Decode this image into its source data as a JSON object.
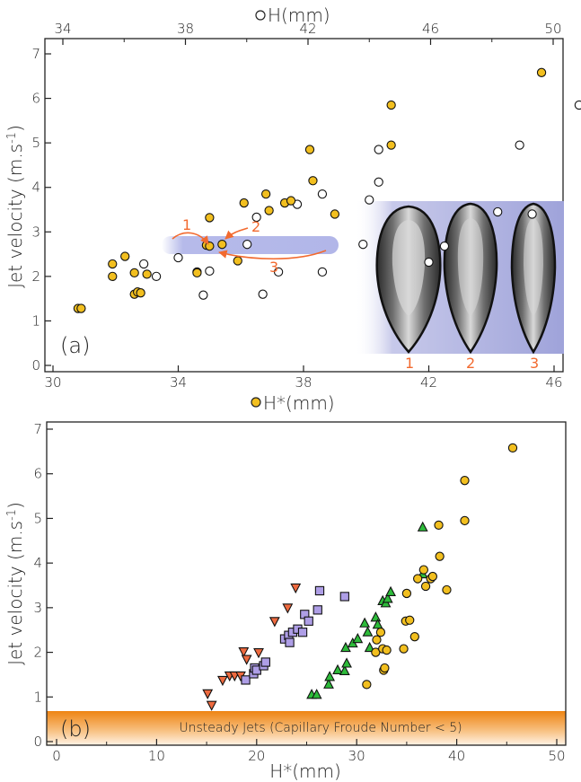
{
  "chart_data": [
    {
      "panel": "(a)",
      "type": "scatter",
      "xlabel": "H*(mm)",
      "ylabel": "Jet velocity (m.s-1)",
      "top_xlabel": "H(mm)",
      "xlim": [
        30,
        46
      ],
      "xlim_top": [
        33,
        50
      ],
      "ylim": [
        0,
        7
      ],
      "xticks": [
        30,
        34,
        38,
        42,
        46
      ],
      "xticks_top": [
        34,
        38,
        42,
        46,
        50
      ],
      "yticks": [
        0,
        1,
        2,
        3,
        4,
        5,
        6,
        7
      ],
      "colors": {
        "filled": "#f2bf1f",
        "open": "#ffffff",
        "arrow": "#f26a2f",
        "band": "#a9aee6"
      },
      "series": [
        {
          "axis": "bottom H*",
          "marker": "filled circle",
          "points": [
            [
              30.8,
              1.28
            ],
            [
              30.9,
              1.28
            ],
            [
              31.9,
              2.0
            ],
            [
              31.9,
              2.28
            ],
            [
              32.3,
              2.45
            ],
            [
              32.6,
              2.08
            ],
            [
              32.6,
              1.6
            ],
            [
              32.7,
              1.65
            ],
            [
              32.8,
              1.63
            ],
            [
              33.0,
              2.05
            ],
            [
              34.6,
              2.08
            ],
            [
              34.9,
              2.7
            ],
            [
              35.0,
              2.68
            ],
            [
              35.0,
              3.32
            ],
            [
              35.4,
              2.72
            ],
            [
              35.9,
              2.35
            ],
            [
              36.1,
              3.65
            ],
            [
              36.8,
              3.85
            ],
            [
              36.9,
              3.48
            ],
            [
              37.4,
              3.65
            ],
            [
              37.6,
              3.7
            ],
            [
              38.2,
              4.85
            ],
            [
              38.3,
              4.15
            ],
            [
              39.0,
              3.4
            ],
            [
              40.8,
              5.85
            ],
            [
              40.8,
              4.95
            ],
            [
              45.6,
              6.58
            ]
          ]
        },
        {
          "axis": "top H",
          "marker": "open circle",
          "points": [
            [
              32.9,
              2.28
            ],
            [
              33.3,
              2.0
            ],
            [
              34.0,
              2.42
            ],
            [
              34.6,
              2.1
            ],
            [
              34.8,
              1.58
            ],
            [
              35.0,
              2.12
            ],
            [
              36.2,
              2.72
            ],
            [
              36.5,
              3.33
            ],
            [
              36.7,
              1.6
            ],
            [
              37.2,
              2.1
            ],
            [
              37.8,
              3.62
            ],
            [
              38.6,
              2.1
            ],
            [
              38.6,
              3.85
            ],
            [
              39.9,
              2.72
            ],
            [
              40.1,
              3.72
            ],
            [
              40.4,
              4.12
            ],
            [
              40.4,
              4.85
            ],
            [
              42.0,
              2.32
            ],
            [
              42.5,
              2.68
            ],
            [
              44.2,
              3.45
            ],
            [
              44.9,
              4.95
            ],
            [
              46.8,
              5.85
            ],
            [
              49.7,
              6.58
            ],
            [
              45.3,
              3.4
            ]
          ]
        }
      ],
      "arrow_labels": [
        "1",
        "2",
        "3"
      ],
      "inset_labels": [
        "1",
        "2",
        "3"
      ]
    },
    {
      "panel": "(b)",
      "type": "scatter",
      "xlabel": "H*(mm)",
      "ylabel": "Jet velocity (m.s-1)",
      "xlim": [
        0,
        50
      ],
      "ylim": [
        0,
        7
      ],
      "xticks": [
        0,
        10,
        20,
        30,
        40,
        50
      ],
      "yticks": [
        0,
        1,
        2,
        3,
        4,
        5,
        6,
        7
      ],
      "band_label": "Unsteady Jets (Capillary Froude Number < 5)",
      "band_range": [
        0,
        0.68
      ],
      "colors": {
        "down_triangle": "#ee6a3f",
        "square": "#ae9ee6",
        "up_triangle": "#2dbb3a",
        "circle": "#f2bf1f",
        "band": "#ef8a1a"
      },
      "series": [
        {
          "marker": "down-triangle",
          "points": [
            [
              15.1,
              1.08
            ],
            [
              15.5,
              0.82
            ],
            [
              16.6,
              1.38
            ],
            [
              17.3,
              1.48
            ],
            [
              17.8,
              1.48
            ],
            [
              18.4,
              1.48
            ],
            [
              18.7,
              2.02
            ],
            [
              19.0,
              1.85
            ],
            [
              20.2,
              2.0
            ],
            [
              21.8,
              2.7
            ],
            [
              23.1,
              3.0
            ],
            [
              23.9,
              3.45
            ]
          ]
        },
        {
          "marker": "square",
          "points": [
            [
              18.9,
              1.38
            ],
            [
              19.7,
              1.52
            ],
            [
              19.8,
              1.65
            ],
            [
              20.0,
              1.6
            ],
            [
              20.7,
              1.7
            ],
            [
              20.9,
              1.78
            ],
            [
              22.8,
              2.3
            ],
            [
              23.2,
              2.38
            ],
            [
              23.3,
              2.22
            ],
            [
              23.6,
              2.45
            ],
            [
              24.1,
              2.52
            ],
            [
              24.6,
              2.45
            ],
            [
              24.8,
              2.85
            ],
            [
              25.2,
              2.7
            ],
            [
              26.1,
              2.95
            ],
            [
              26.3,
              3.38
            ],
            [
              28.8,
              3.25
            ]
          ]
        },
        {
          "marker": "up-triangle",
          "points": [
            [
              25.5,
              1.05
            ],
            [
              26.0,
              1.05
            ],
            [
              27.2,
              1.28
            ],
            [
              27.3,
              1.45
            ],
            [
              28.1,
              1.6
            ],
            [
              28.8,
              1.58
            ],
            [
              28.9,
              2.1
            ],
            [
              29.0,
              1.75
            ],
            [
              29.6,
              2.2
            ],
            [
              30.1,
              2.3
            ],
            [
              30.8,
              2.65
            ],
            [
              31.1,
              2.45
            ],
            [
              31.3,
              2.1
            ],
            [
              31.9,
              2.78
            ],
            [
              32.1,
              2.62
            ],
            [
              32.6,
              3.15
            ],
            [
              32.9,
              3.1
            ],
            [
              33.1,
              3.2
            ],
            [
              33.4,
              3.35
            ],
            [
              36.6,
              4.8
            ],
            [
              36.6,
              3.75
            ]
          ]
        },
        {
          "marker": "circle",
          "points": [
            [
              31.0,
              1.28
            ],
            [
              31.9,
              2.0
            ],
            [
              32.0,
              2.28
            ],
            [
              32.4,
              2.45
            ],
            [
              32.6,
              2.08
            ],
            [
              32.7,
              1.6
            ],
            [
              32.8,
              1.65
            ],
            [
              33.0,
              2.05
            ],
            [
              34.7,
              2.08
            ],
            [
              34.9,
              2.7
            ],
            [
              35.0,
              3.32
            ],
            [
              35.3,
              2.72
            ],
            [
              35.8,
              2.35
            ],
            [
              36.1,
              3.65
            ],
            [
              36.7,
              3.85
            ],
            [
              36.9,
              3.48
            ],
            [
              37.4,
              3.65
            ],
            [
              37.6,
              3.7
            ],
            [
              38.2,
              4.85
            ],
            [
              38.3,
              4.15
            ],
            [
              39.0,
              3.4
            ],
            [
              40.8,
              5.85
            ],
            [
              40.8,
              4.95
            ],
            [
              45.6,
              6.58
            ]
          ]
        }
      ]
    }
  ]
}
